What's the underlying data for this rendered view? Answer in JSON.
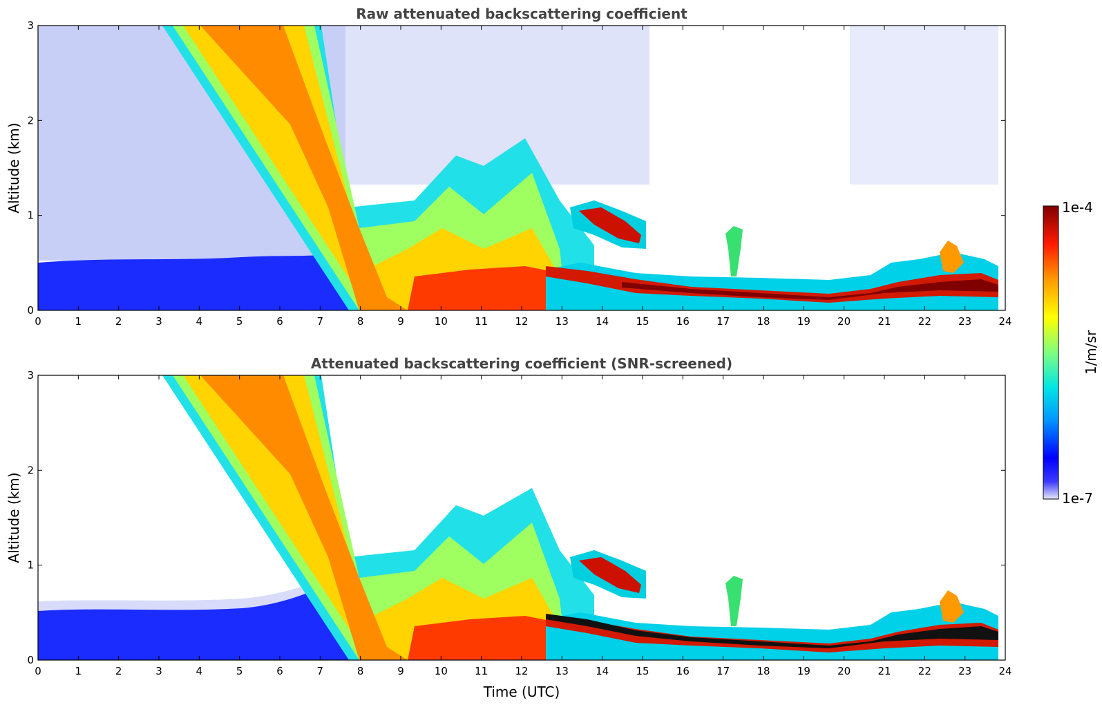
{
  "chart_data": [
    {
      "type": "heatmap",
      "title": "Raw attenuated backscattering coefficient",
      "ylabel": "Altitude (km)",
      "xlabel": "",
      "xlim": [
        0,
        24
      ],
      "ylim": [
        0,
        3
      ],
      "x_ticks": [
        "0",
        "1",
        "2",
        "3",
        "4",
        "5",
        "6",
        "7",
        "8",
        "9",
        "10",
        "11",
        "12",
        "13",
        "14",
        "15",
        "16",
        "17",
        "18",
        "19",
        "20",
        "21",
        "22",
        "23",
        "24"
      ],
      "y_ticks": [
        "0",
        "1",
        "2",
        "3"
      ],
      "screened": false
    },
    {
      "type": "heatmap",
      "title": "Attenuated backscattering coefficient (SNR-screened)",
      "ylabel": "Altitude (km)",
      "xlabel": "Time (UTC)",
      "xlim": [
        0,
        24
      ],
      "ylim": [
        0,
        3
      ],
      "x_ticks": [
        "0",
        "1",
        "2",
        "3",
        "4",
        "5",
        "6",
        "7",
        "8",
        "9",
        "10",
        "11",
        "12",
        "13",
        "14",
        "15",
        "16",
        "17",
        "18",
        "19",
        "20",
        "21",
        "22",
        "23",
        "24"
      ],
      "y_ticks": [
        "0",
        "1",
        "2",
        "3"
      ],
      "screened": true
    }
  ],
  "colorbar": {
    "label": "1/m/sr",
    "max_label": "1e-4",
    "min_label": "1e-7",
    "scale": "log",
    "colormap": [
      "#e6e8f8",
      "#0000ff",
      "#0096ff",
      "#00e5e5",
      "#7fff7f",
      "#ffff00",
      "#ff9900",
      "#ff1a00",
      "#800000"
    ]
  }
}
